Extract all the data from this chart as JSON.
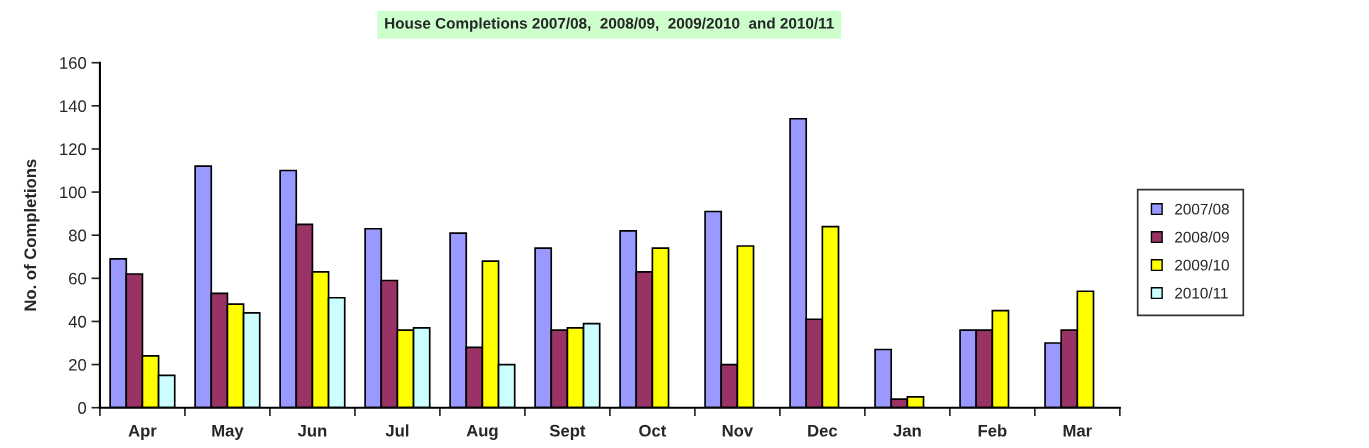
{
  "chart_data": {
    "type": "bar",
    "title": "House Completions 2007/08,  2008/09,  2009/2010  and 2010/11",
    "ylabel": "No. of Completions",
    "categories": [
      "Apr",
      "May",
      "Jun",
      "Jul",
      "Aug",
      "Sept",
      "Oct",
      "Nov",
      "Dec",
      "Jan",
      "Feb",
      "Mar"
    ],
    "series": [
      {
        "name": "2007/08",
        "color": "#9999ff",
        "values": [
          69,
          112,
          110,
          83,
          81,
          74,
          82,
          91,
          134,
          27,
          36,
          30
        ]
      },
      {
        "name": "2008/09",
        "color": "#993366",
        "values": [
          62,
          53,
          85,
          59,
          28,
          36,
          63,
          20,
          41,
          4,
          36,
          36
        ]
      },
      {
        "name": "2009/10",
        "color": "#ffff00",
        "values": [
          24,
          48,
          63,
          36,
          68,
          37,
          74,
          75,
          84,
          5,
          45,
          54
        ]
      },
      {
        "name": "2010/11",
        "color": "#ccffff",
        "values": [
          15,
          44,
          51,
          37,
          20,
          39,
          null,
          null,
          null,
          null,
          null,
          null
        ]
      }
    ],
    "ylim": [
      0,
      160
    ],
    "yticks": [
      0,
      20,
      40,
      60,
      80,
      100,
      120,
      140,
      160
    ],
    "grid": false,
    "legend": "right"
  }
}
